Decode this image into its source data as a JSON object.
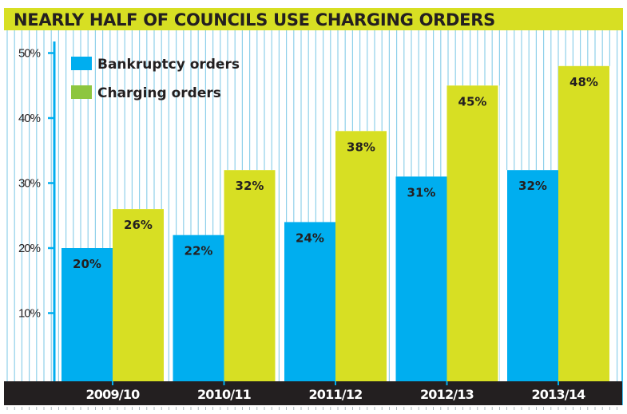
{
  "chart_data": {
    "type": "bar",
    "title": "NEARLY HALF OF COUNCILS USE CHARGING ORDERS",
    "xlabel": "",
    "ylabel": "",
    "categories": [
      "2009/10",
      "2010/11",
      "2011/12",
      "2012/13",
      "2013/14"
    ],
    "series": [
      {
        "name": "Bankruptcy orders",
        "color": "#00aeef",
        "values": [
          20,
          22,
          24,
          31,
          32
        ],
        "labels": [
          "20%",
          "22%",
          "24%",
          "31%",
          "32%"
        ]
      },
      {
        "name": "Charging orders",
        "color": "#d7df23",
        "values": [
          26,
          32,
          38,
          45,
          48
        ],
        "labels": [
          "26%",
          "32%",
          "38%",
          "45%",
          "48%"
        ]
      }
    ],
    "ylim": [
      0,
      50
    ],
    "yticks": [
      10,
      20,
      30,
      40,
      50
    ],
    "ytick_labels": [
      "10%",
      "20%",
      "30%",
      "40%",
      "50%"
    ],
    "legend": {
      "placement": "top-left",
      "entries": [
        {
          "label": "Bankruptcy orders",
          "color": "#00aeef"
        },
        {
          "label": "Charging orders",
          "color": "#8dc63f"
        }
      ]
    },
    "grid": "vertical stripes (decorative)",
    "colors": {
      "title_band": "#d7df23",
      "axis": "#00aeef",
      "stripe": "#8fd0ea",
      "xaxis_band": "#231f20",
      "text": "#231f20"
    }
  }
}
